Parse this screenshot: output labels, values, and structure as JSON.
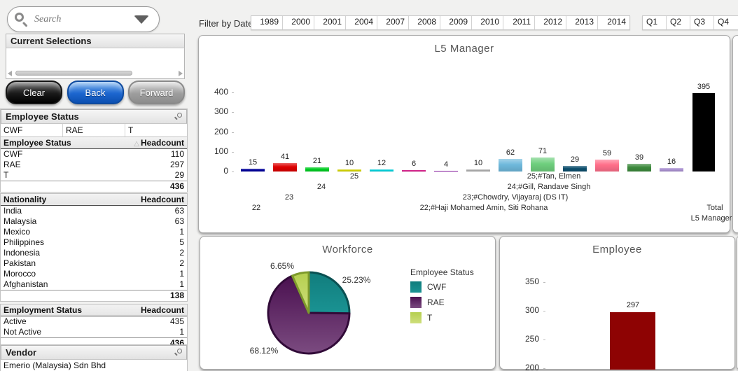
{
  "search": {
    "placeholder": "Search"
  },
  "current_selections": {
    "title": "Current Selections"
  },
  "toolbar": {
    "clear": "Clear",
    "back": "Back",
    "forward": "Forward"
  },
  "employee_status_panel": {
    "title": "Employee Status",
    "listbox": [
      "CWF",
      "RAE",
      "T"
    ],
    "table": {
      "col1": "Employee Status",
      "col2": "Headcount",
      "sort_icon": "△",
      "rows": [
        [
          "CWF",
          "110"
        ],
        [
          "RAE",
          "297"
        ],
        [
          "T",
          "29"
        ]
      ],
      "total": "436"
    }
  },
  "nationality_table": {
    "col1": "Nationality",
    "col2": "Headcount",
    "rows": [
      [
        "India",
        "63"
      ],
      [
        "Malaysia",
        "63"
      ],
      [
        "Mexico",
        "1"
      ],
      [
        "Philippines",
        "5"
      ],
      [
        "Indonesia",
        "2"
      ],
      [
        "Pakistan",
        "2"
      ],
      [
        "Morocco",
        "1"
      ],
      [
        "Afghanistan",
        "1"
      ]
    ],
    "total": "138"
  },
  "employment_table": {
    "col1": "Employment Status",
    "col2": "Headcount",
    "rows": [
      [
        "Active",
        "435"
      ],
      [
        "Not Active",
        "1"
      ]
    ],
    "total": "436"
  },
  "vendor": {
    "title": "Vendor",
    "rows": [
      "Emerio (Malaysia) Sdn Bhd"
    ]
  },
  "filter": {
    "label": "Filter by Date",
    "years": [
      "1989",
      "2000",
      "2001",
      "2004",
      "2007",
      "2008",
      "2009",
      "2010",
      "2011",
      "2012",
      "2013",
      "2014"
    ],
    "quarters": [
      "Q1",
      "Q2",
      "Q3",
      "Q4"
    ]
  },
  "chart_data": [
    {
      "type": "bar",
      "title": "L5 Manager",
      "values": [
        15,
        41,
        21,
        10,
        12,
        6,
        4,
        10,
        62,
        71,
        29,
        59,
        39,
        16,
        395
      ],
      "colors": [
        "#000099",
        "#dd0000",
        "#00cc22",
        "#cfcf00",
        "#00ccd6",
        "#cc0077",
        "#7a0096",
        "#a8a8a8",
        "#6fb9dc",
        "#6fcf7e",
        "#0d4f6e",
        "#ff6f8a",
        "#3d8a3d",
        "#a98fd0",
        "#000000"
      ],
      "flat_last": true,
      "ylim": [
        0,
        400
      ],
      "yticks": [
        400,
        300,
        200,
        100,
        0
      ],
      "grid": false,
      "stagger_labels": [
        {
          "text": "22",
          "x": 82,
          "line": 4
        },
        {
          "text": "23",
          "x": 129,
          "line": 3
        },
        {
          "text": "24",
          "x": 175,
          "line": 2
        },
        {
          "text": "25",
          "x": 222,
          "line": 1
        },
        {
          "text": "22;#Haji Mohamed Amin, Siti Rohana",
          "x": 407,
          "line": 4
        },
        {
          "text": "23;#Chowdry, Vijayaraj (DS IT)",
          "x": 452,
          "line": 3
        },
        {
          "text": "24;#Gill, Randave Singh",
          "x": 500,
          "line": 2
        },
        {
          "text": "25;#Tan, Elmen",
          "x": 507,
          "line": 1
        },
        {
          "text": "Total",
          "x": 737,
          "line": 4
        },
        {
          "text": "L5 Manager",
          "x": 732,
          "line": 5
        }
      ]
    },
    {
      "type": "pie",
      "title": "Workforce",
      "legend_title": "Employee Status",
      "legend_position": "right",
      "slices": [
        {
          "label": "CWF",
          "value": 25.23,
          "display": "25.23%",
          "color": "#117d7d",
          "color_dark": "#0a5052",
          "color_light": "#1a9393"
        },
        {
          "label": "RAE",
          "value": 68.12,
          "display": "68.12%",
          "color": "#4a1050",
          "color_dark": "#310a38",
          "color_light": "#7b4b80"
        },
        {
          "label": "T",
          "value": 6.65,
          "display": "6.65%",
          "color": "#b5cf4f",
          "color_dark": "#7e9a2c",
          "color_light": "#cede7c"
        }
      ],
      "label_positions": [
        {
          "x": 223,
          "y": 55
        },
        {
          "x": 91,
          "y": 156
        },
        {
          "x": 117,
          "y": 35
        }
      ]
    },
    {
      "type": "bar",
      "title": "Employee",
      "values": [
        297
      ],
      "colors": [
        "#8e0303"
      ],
      "ylim": [
        200,
        350
      ],
      "yticks": [
        350,
        300,
        250,
        200
      ],
      "grid": false
    }
  ]
}
